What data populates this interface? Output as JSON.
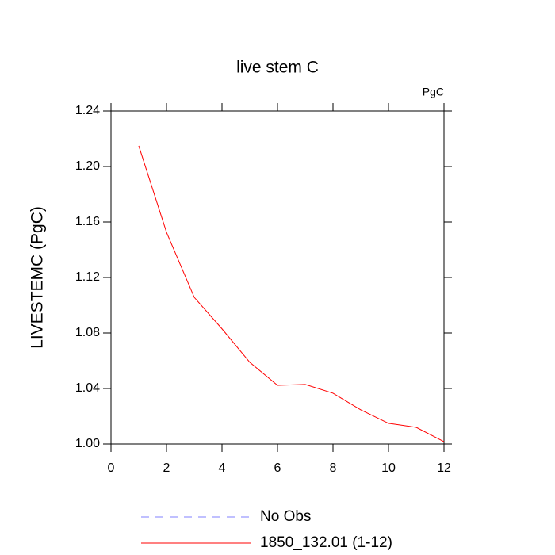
{
  "chart_data": {
    "type": "line",
    "title": "live stem C",
    "units_label": "PgC",
    "y_label": "LIVESTEMC  (PgC)",
    "x": [
      1,
      2,
      3,
      4,
      5,
      6,
      7,
      8,
      9,
      10,
      11,
      12
    ],
    "series": [
      {
        "name": "No Obs",
        "color": "#8080ff",
        "dash": true,
        "values": [
          null,
          null,
          null,
          null,
          null,
          null,
          null,
          null,
          null,
          null,
          null,
          null
        ]
      },
      {
        "name": "1850_132.01 (1-12)",
        "color": "#ff0000",
        "dash": false,
        "values": [
          1.2149,
          1.1526,
          1.1057,
          1.083,
          1.0589,
          1.0423,
          1.0429,
          1.0366,
          1.0246,
          1.0149,
          1.012,
          1.0017
        ]
      }
    ],
    "xlim": [
      0,
      12
    ],
    "xticks": [
      0,
      2,
      4,
      6,
      8,
      10,
      12
    ],
    "ylim": [
      1.0,
      1.24
    ],
    "yticks": [
      {
        "value": 1.0,
        "label": "1.00"
      },
      {
        "value": 1.04,
        "label": "1.04"
      },
      {
        "value": 1.08,
        "label": "1.08"
      },
      {
        "value": 1.12,
        "label": "1.12"
      },
      {
        "value": 1.16,
        "label": "1.16"
      },
      {
        "value": 1.2,
        "label": "1.20"
      },
      {
        "value": 1.24,
        "label": "1.24"
      }
    ]
  }
}
